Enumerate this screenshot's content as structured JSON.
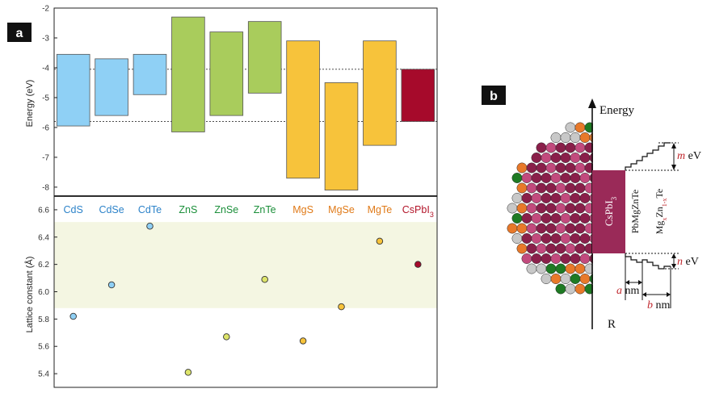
{
  "chart_data": [
    {
      "type": "bar",
      "panel": "a",
      "subtype": "floating band edges",
      "categories": [
        "CdS",
        "CdSe",
        "CdTe",
        "ZnS",
        "ZnSe",
        "ZnTe",
        "MgS",
        "MgSe",
        "MgTe",
        "CsPbI3"
      ],
      "category_sub": {
        "CsPbI3": "3"
      },
      "series": [
        {
          "values_top": [
            -3.55,
            -3.7,
            -3.55,
            -2.3,
            -2.8,
            -2.45,
            -3.1,
            -4.5,
            -3.1,
            -4.05
          ],
          "values_bottom": [
            -5.95,
            -5.6,
            -4.9,
            -6.15,
            -5.6,
            -4.85,
            -7.7,
            -8.1,
            -6.6,
            -5.8
          ]
        }
      ],
      "category_colors": [
        "#8fd0f5",
        "#8fd0f5",
        "#8fd0f5",
        "#a9cc5c",
        "#a9cc5c",
        "#a9cc5c",
        "#f7c33b",
        "#f7c33b",
        "#f7c33b",
        "#a60a2b"
      ],
      "label_colors": [
        "#2d83c9",
        "#2d83c9",
        "#2d83c9",
        "#1b8f3a",
        "#1b8f3a",
        "#1b8f3a",
        "#e07a18",
        "#e07a18",
        "#e07a18",
        "#b3152a"
      ],
      "ylabel": "Energy (eV)",
      "ylim": [
        -8.3,
        -2
      ],
      "yticks": [
        "-2",
        "-3",
        "-4",
        "-5",
        "-6",
        "-7",
        "-8"
      ],
      "reference_lines": [
        -4.05,
        -5.8
      ],
      "grid": false
    },
    {
      "type": "scatter",
      "panel": "a",
      "categories": [
        "CdS",
        "CdSe",
        "CdTe",
        "ZnS",
        "ZnSe",
        "ZnTe",
        "MgS",
        "MgSe",
        "MgTe",
        "CsPbI3"
      ],
      "values": [
        5.82,
        6.05,
        6.48,
        5.41,
        5.67,
        6.09,
        5.64,
        5.89,
        6.37,
        6.2
      ],
      "point_colors": [
        "#8fd0f5",
        "#8fd0f5",
        "#8fd0f5",
        "#dde46a",
        "#dde46a",
        "#dde46a",
        "#f7c33b",
        "#f7c33b",
        "#f7c33b",
        "#a60a2b"
      ],
      "ylabel": "Lattice constant (Å)",
      "ylim": [
        5.3,
        6.7
      ],
      "yticks": [
        "5.4",
        "5.6",
        "5.8",
        "6.0",
        "6.2",
        "6.4",
        "6.6"
      ],
      "highlight_band": [
        5.88,
        6.51
      ],
      "highlight_color": "#f4f6e2",
      "grid": false
    }
  ],
  "panel_a": {
    "badge": "a"
  },
  "panel_b": {
    "badge": "b",
    "energy_label": "Energy",
    "r_label": "R",
    "core_label": "CsPbI",
    "core_sub": "3",
    "shell1_label": "PbMgZnTe",
    "shell2_label": {
      "base": "Mg",
      "sub1": "x",
      "mid": "Zn",
      "sub2": "1-x",
      "end": "Te"
    },
    "m_var": "m",
    "m_unit": " eV",
    "n_var": "n",
    "n_unit": " eV",
    "a_var": "a",
    "a_unit": " nm",
    "b_var": "b",
    "b_unit": " nm",
    "atom_colors": [
      "#1e7a23",
      "#e8792a",
      "#c8c8c8",
      "#8a1f4a"
    ]
  }
}
